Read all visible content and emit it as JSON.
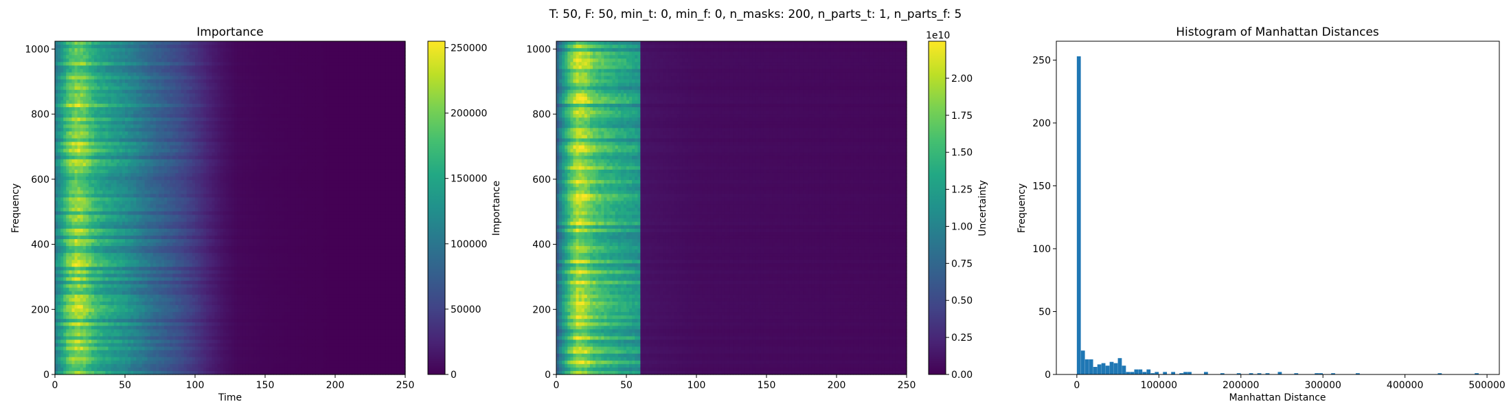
{
  "suptitle": "T: 50, F: 50, min_t: 0, min_f: 0, n_masks: 200, n_parts_t: 1, n_parts_f: 5",
  "chart_data": [
    {
      "type": "heatmap",
      "title": "Importance",
      "xlabel": "Time",
      "ylabel": "Frequency",
      "xlim": [
        0,
        250
      ],
      "ylim": [
        0,
        1024
      ],
      "xticks": [
        0,
        50,
        100,
        150,
        200,
        250
      ],
      "yticks": [
        0,
        200,
        400,
        600,
        800,
        1000
      ],
      "colormap": "viridis",
      "colorbar": {
        "label": "Importance",
        "range": [
          0,
          255000
        ],
        "ticks": [
          0,
          50000,
          100000,
          150000,
          200000,
          250000
        ],
        "tick_labels": [
          "0",
          "50000",
          "100000",
          "150000",
          "200000",
          "250000"
        ]
      },
      "time_profile": [
        {
          "t": 0,
          "v": 0.45
        },
        {
          "t": 5,
          "v": 0.6
        },
        {
          "t": 10,
          "v": 0.78
        },
        {
          "t": 15,
          "v": 0.86
        },
        {
          "t": 20,
          "v": 0.84
        },
        {
          "t": 25,
          "v": 0.74
        },
        {
          "t": 30,
          "v": 0.66
        },
        {
          "t": 40,
          "v": 0.58
        },
        {
          "t": 50,
          "v": 0.52
        },
        {
          "t": 60,
          "v": 0.44
        },
        {
          "t": 70,
          "v": 0.36
        },
        {
          "t": 80,
          "v": 0.3
        },
        {
          "t": 90,
          "v": 0.24
        },
        {
          "t": 100,
          "v": 0.17
        },
        {
          "t": 110,
          "v": 0.1
        },
        {
          "t": 120,
          "v": 0.05
        },
        {
          "t": 130,
          "v": 0.02
        },
        {
          "t": 150,
          "v": 0.01
        },
        {
          "t": 200,
          "v": 0.0
        },
        {
          "t": 250,
          "v": 0.0
        }
      ]
    },
    {
      "type": "heatmap",
      "title": "",
      "xlabel": "",
      "ylabel": "",
      "xlim": [
        0,
        250
      ],
      "ylim": [
        0,
        1024
      ],
      "xticks": [
        0,
        50,
        100,
        150,
        200,
        250
      ],
      "yticks": [
        0,
        200,
        400,
        600,
        800,
        1000
      ],
      "colormap": "viridis",
      "colorbar": {
        "label": "Uncertainty",
        "range": [
          0,
          2.25
        ],
        "ticks": [
          0,
          0.25,
          0.5,
          0.75,
          1.0,
          1.25,
          1.5,
          1.75,
          2.0
        ],
        "tick_labels": [
          "0.00",
          "0.25",
          "0.50",
          "0.75",
          "1.00",
          "1.25",
          "1.50",
          "1.75",
          "2.00"
        ],
        "offset_label": "1e10"
      },
      "time_profile": [
        {
          "t": 0,
          "v": 0.3
        },
        {
          "t": 5,
          "v": 0.55
        },
        {
          "t": 10,
          "v": 0.75
        },
        {
          "t": 15,
          "v": 0.9
        },
        {
          "t": 20,
          "v": 0.88
        },
        {
          "t": 25,
          "v": 0.78
        },
        {
          "t": 30,
          "v": 0.72
        },
        {
          "t": 40,
          "v": 0.65
        },
        {
          "t": 50,
          "v": 0.6
        },
        {
          "t": 59,
          "v": 0.55
        },
        {
          "t": 60,
          "v": 0.05
        },
        {
          "t": 100,
          "v": 0.03
        },
        {
          "t": 250,
          "v": 0.02
        }
      ]
    },
    {
      "type": "bar",
      "title": "Histogram of Manhattan Distances",
      "xlabel": "Manhattan Distance",
      "ylabel": "Frequency",
      "xlim": [
        -25000,
        515000
      ],
      "ylim": [
        0,
        265
      ],
      "xticks": [
        0,
        100000,
        200000,
        300000,
        400000,
        500000
      ],
      "yticks": [
        0,
        50,
        100,
        150,
        200,
        250
      ],
      "bin_width": 5000,
      "color": "#1f77b4",
      "bins": [
        {
          "x": 0,
          "count": 253
        },
        {
          "x": 5000,
          "count": 19
        },
        {
          "x": 10000,
          "count": 12
        },
        {
          "x": 15000,
          "count": 12
        },
        {
          "x": 20000,
          "count": 6
        },
        {
          "x": 25000,
          "count": 8
        },
        {
          "x": 30000,
          "count": 9
        },
        {
          "x": 35000,
          "count": 7
        },
        {
          "x": 40000,
          "count": 10
        },
        {
          "x": 45000,
          "count": 9
        },
        {
          "x": 50000,
          "count": 13
        },
        {
          "x": 55000,
          "count": 7
        },
        {
          "x": 60000,
          "count": 2
        },
        {
          "x": 65000,
          "count": 2
        },
        {
          "x": 70000,
          "count": 4
        },
        {
          "x": 75000,
          "count": 4
        },
        {
          "x": 80000,
          "count": 2
        },
        {
          "x": 85000,
          "count": 4
        },
        {
          "x": 90000,
          "count": 1
        },
        {
          "x": 95000,
          "count": 2
        },
        {
          "x": 105000,
          "count": 2
        },
        {
          "x": 115000,
          "count": 2
        },
        {
          "x": 125000,
          "count": 1
        },
        {
          "x": 130000,
          "count": 2
        },
        {
          "x": 135000,
          "count": 2
        },
        {
          "x": 155000,
          "count": 2
        },
        {
          "x": 175000,
          "count": 1
        },
        {
          "x": 195000,
          "count": 1
        },
        {
          "x": 210000,
          "count": 1
        },
        {
          "x": 220000,
          "count": 1
        },
        {
          "x": 230000,
          "count": 1
        },
        {
          "x": 245000,
          "count": 2
        },
        {
          "x": 265000,
          "count": 1
        },
        {
          "x": 290000,
          "count": 1
        },
        {
          "x": 295000,
          "count": 1
        },
        {
          "x": 310000,
          "count": 1
        },
        {
          "x": 340000,
          "count": 1
        },
        {
          "x": 440000,
          "count": 1
        },
        {
          "x": 485000,
          "count": 1
        }
      ]
    }
  ]
}
